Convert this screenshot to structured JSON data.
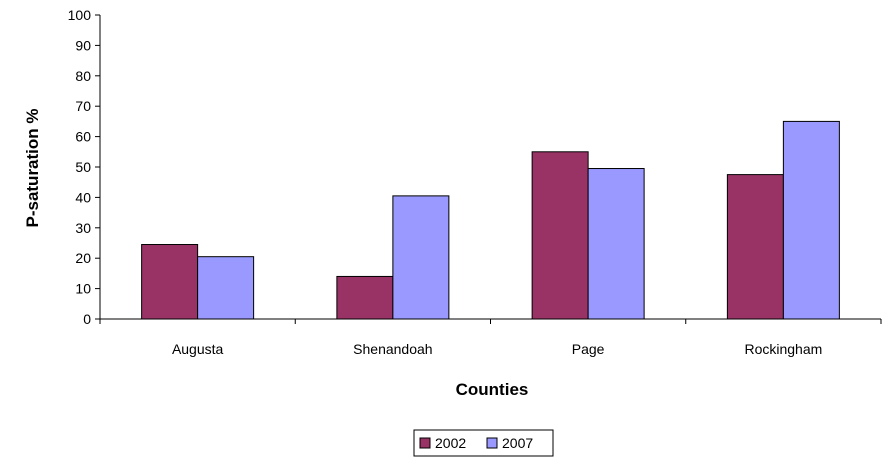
{
  "chart_data": {
    "type": "bar",
    "categories": [
      "Augusta",
      "Shenandoah",
      "Page",
      "Rockingham"
    ],
    "series": [
      {
        "name": "2002",
        "values": [
          24.5,
          14,
          55,
          47.5
        ],
        "color": "#993366"
      },
      {
        "name": "2007",
        "values": [
          20.5,
          40.5,
          49.5,
          65
        ],
        "color": "#9999ff"
      }
    ],
    "xlabel": "Counties",
    "ylabel": "P-saturation %",
    "ylim": [
      0,
      100
    ],
    "yticks": [
      "0",
      "10",
      "20",
      "30",
      "40",
      "50",
      "60",
      "70",
      "80",
      "90",
      "100"
    ],
    "grid": false,
    "legend_position": "bottom"
  }
}
